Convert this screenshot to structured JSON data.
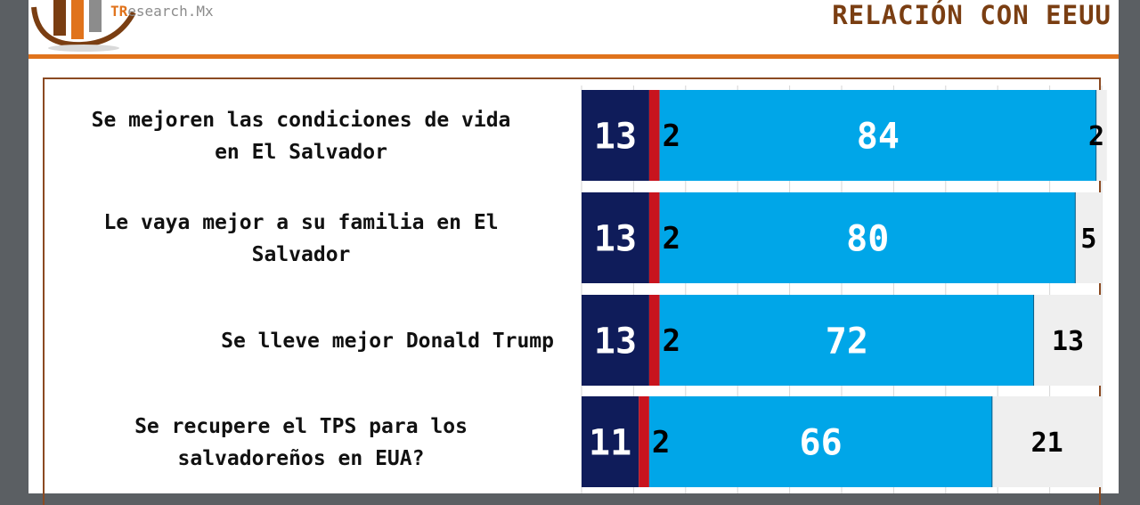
{
  "header": {
    "logo_prefix": "TR",
    "logo_rest": "esearch.Mx",
    "title": "RELACIÓN CON EEUU"
  },
  "colors": {
    "dark_navy": "#0f1c5a",
    "red": "#c8141e",
    "light_blue": "#00a6e8",
    "rest_gray": "#efefef",
    "accent": "#e0731c"
  },
  "chart_data": {
    "type": "bar",
    "orientation": "horizontal",
    "stacked": true,
    "xlim": [
      0,
      100
    ],
    "categories": [
      "Se mejoren las condiciones de vida en El Salvador",
      "Le vaya mejor a su familia en El Salvador",
      "Se lleve mejor Donald Trump",
      "Se recupere el TPS para los salvadoreños en EUA?"
    ],
    "series": [
      {
        "values": [
          13,
          13,
          13,
          11
        ],
        "color": "#0f1c5a"
      },
      {
        "values": [
          2,
          2,
          2,
          2
        ],
        "color": "#c8141e"
      },
      {
        "values": [
          84,
          80,
          72,
          66
        ],
        "color": "#00a6e8"
      },
      {
        "values": [
          2,
          5,
          13,
          21
        ],
        "color": "#efefef"
      }
    ]
  }
}
